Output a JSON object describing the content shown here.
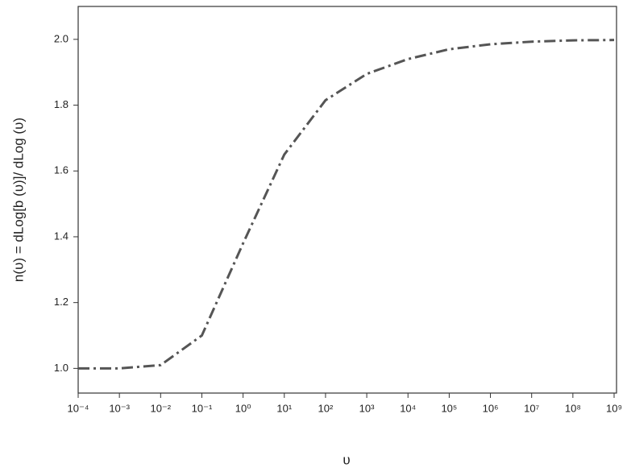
{
  "chart_data": {
    "type": "line",
    "x_label": "υ",
    "y_label": "n(υ) =  dLog[b (υ)]/  dLog (υ)",
    "x": [
      0.0001,
      0.001,
      0.01,
      0.1,
      1,
      10,
      100,
      1000,
      10000,
      100000,
      1000000,
      10000000,
      100000000,
      1000000000
    ],
    "series": [
      {
        "color": "#555555",
        "values": [
          1.0,
          1.0,
          1.01,
          1.1,
          1.38,
          1.65,
          1.815,
          1.895,
          1.94,
          1.97,
          1.985,
          1.993,
          1.997,
          1.998
        ]
      }
    ],
    "xscale": "log",
    "xlim": [
      0.0001,
      1000000000
    ],
    "xticks": [
      {
        "value": 0.0001,
        "label": "10⁻⁴"
      },
      {
        "value": 0.001,
        "label": "10⁻³"
      },
      {
        "value": 0.01,
        "label": "10⁻²"
      },
      {
        "value": 0.1,
        "label": "10⁻¹"
      },
      {
        "value": 1,
        "label": "10⁰"
      },
      {
        "value": 10,
        "label": "10¹"
      },
      {
        "value": 100,
        "label": "10²"
      },
      {
        "value": 1000,
        "label": "10³"
      },
      {
        "value": 10000,
        "label": "10⁴"
      },
      {
        "value": 100000,
        "label": "10⁵"
      },
      {
        "value": 1000000,
        "label": "10⁶"
      },
      {
        "value": 10000000,
        "label": "10⁷"
      },
      {
        "value": 100000000,
        "label": "10⁸"
      },
      {
        "value": 1000000000,
        "label": "10⁹"
      }
    ],
    "ylim": [
      0.925,
      2.1
    ],
    "yticks": [
      {
        "value": 1,
        "label": "1.0"
      },
      1.2,
      1.4,
      1.6,
      1.8,
      {
        "value": 2,
        "label": "2.0"
      }
    ]
  }
}
